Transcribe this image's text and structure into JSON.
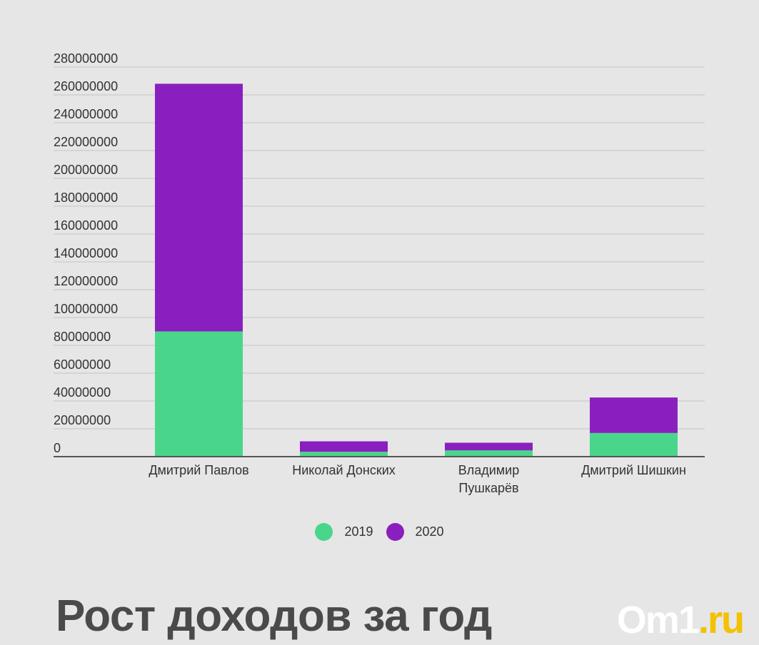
{
  "chart_data": {
    "type": "bar",
    "stacked": true,
    "categories": [
      "Дмитрий Павлов",
      "Николай Донских",
      "Владимир Пушкарёв",
      "Дмитрий Шишкин"
    ],
    "category_lines": [
      [
        "Дмитрий Павлов"
      ],
      [
        "Николай Донских"
      ],
      [
        "Владимир",
        "Пушкарёв"
      ],
      [
        "Дмитрий Шишкин"
      ]
    ],
    "series": [
      {
        "name": "2019",
        "color": "#49d68a",
        "values": [
          90000000,
          3500000,
          4500000,
          17000000
        ]
      },
      {
        "name": "2020",
        "color": "#8a1fbf",
        "values": [
          178000000,
          7500000,
          5500000,
          25500000
        ]
      }
    ],
    "ylim": [
      0,
      280000000
    ],
    "ytick_labels": [
      "0",
      "20000000",
      "40000000",
      "60000000",
      "80000000",
      "100000000",
      "120000000",
      "140000000",
      "160000000",
      "180000000",
      "200000000",
      "220000000",
      "240000000",
      "260000000",
      "280000000"
    ],
    "grid": true,
    "legend_position": "bottom"
  },
  "footer": {
    "title": "Рост доходов за год",
    "logo_main": "Om1",
    "logo_dot": ".",
    "logo_tld": "ru"
  }
}
